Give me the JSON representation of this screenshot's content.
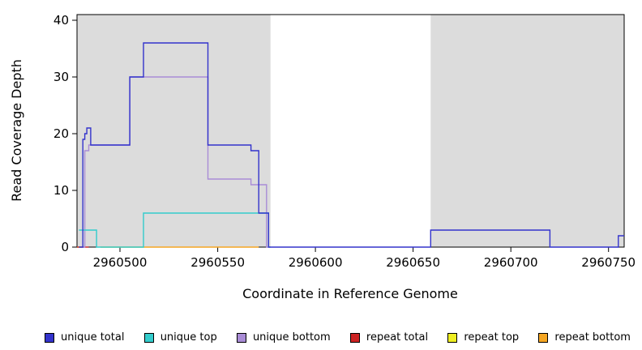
{
  "chart_data": {
    "type": "line",
    "title": "",
    "xlabel": "Coordinate in Reference Genome",
    "ylabel": "Read Coverage Depth",
    "xlim": [
      2960478,
      2960758
    ],
    "ylim": [
      0,
      41
    ],
    "xticks": [
      2960500,
      2960550,
      2960600,
      2960650,
      2960700,
      2960750
    ],
    "yticks": [
      0,
      10,
      20,
      30,
      40
    ],
    "grid": false,
    "legend_position": "bottom",
    "plot_background": "#ffffff",
    "shaded_regions": [
      {
        "x0": 2960478,
        "x1": 2960577,
        "color": "#DCDCDC"
      },
      {
        "x0": 2960659,
        "x1": 2960758,
        "color": "#DCDCDC"
      }
    ],
    "series": [
      {
        "name": "unique total",
        "color": "#3333CC",
        "step": true,
        "points": [
          [
            2960479,
            0
          ],
          [
            2960481,
            19
          ],
          [
            2960482,
            20
          ],
          [
            2960483,
            21
          ],
          [
            2960485,
            18
          ],
          [
            2960505,
            30
          ],
          [
            2960512,
            36
          ],
          [
            2960545,
            18
          ],
          [
            2960567,
            17
          ],
          [
            2960571,
            6
          ],
          [
            2960576,
            0
          ],
          [
            2960659,
            3
          ],
          [
            2960720,
            0
          ],
          [
            2960755,
            2
          ],
          [
            2960758,
            2
          ]
        ]
      },
      {
        "name": "unique top",
        "color": "#33CCCC",
        "step": true,
        "points": [
          [
            2960479,
            3
          ],
          [
            2960488,
            0
          ],
          [
            2960512,
            6
          ],
          [
            2960576,
            0
          ],
          [
            2960577,
            0
          ]
        ]
      },
      {
        "name": "unique bottom",
        "color": "#A98CD6",
        "step": true,
        "points": [
          [
            2960481,
            0
          ],
          [
            2960482,
            17
          ],
          [
            2960484,
            18
          ],
          [
            2960505,
            30
          ],
          [
            2960545,
            12
          ],
          [
            2960567,
            11
          ],
          [
            2960575,
            0
          ],
          [
            2960576,
            0
          ]
        ]
      },
      {
        "name": "repeat total",
        "color": "#CC2222",
        "step": true,
        "points": [
          [
            2960478,
            0
          ],
          [
            2960484,
            0
          ]
        ]
      },
      {
        "name": "repeat top",
        "color": "#EEEE22",
        "step": true,
        "points": [
          [
            2960478,
            0
          ],
          [
            2960481,
            0
          ]
        ]
      },
      {
        "name": "repeat bottom",
        "color": "#F5A623",
        "step": true,
        "points": [
          [
            2960490,
            0
          ],
          [
            2960571,
            0
          ]
        ]
      }
    ]
  }
}
